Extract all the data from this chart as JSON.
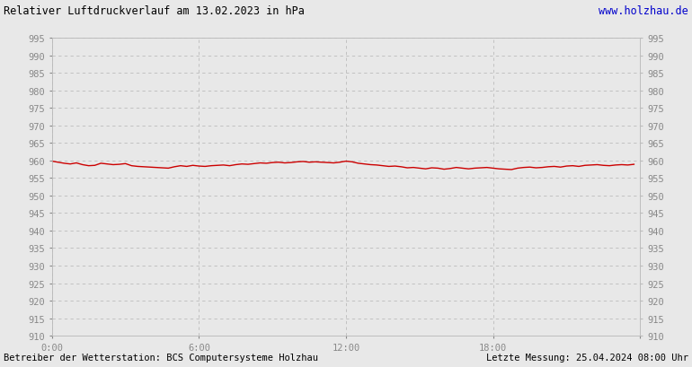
{
  "title_left": "Relativer Luftdruckverlauf am 13.02.2023 in hPa",
  "title_right": "www.holzhau.de",
  "footer_left": "Betreiber der Wetterstation: BCS Computersysteme Holzhau",
  "footer_right": "Letzte Messung: 25.04.2024 08:00 Uhr",
  "background_color": "#e8e8e8",
  "plot_bg_color": "#e8e8e8",
  "grid_color": "#bbbbbb",
  "line_color": "#cc0000",
  "tick_label_color": "#888888",
  "title_color_left": "#000000",
  "title_color_right": "#0000cc",
  "footer_color": "#000000",
  "ylim": [
    910,
    995
  ],
  "ytick_step": 5,
  "xtick_positions": [
    0,
    6,
    12,
    18,
    24
  ],
  "xtick_labels": [
    "0:00",
    "6:00",
    "12:00",
    "18:00",
    ""
  ],
  "xlim": [
    0,
    24
  ],
  "pressure_x": [
    0.0,
    0.25,
    0.5,
    0.75,
    1.0,
    1.25,
    1.5,
    1.75,
    2.0,
    2.25,
    2.5,
    2.75,
    3.0,
    3.25,
    3.5,
    3.75,
    4.0,
    4.25,
    4.5,
    4.75,
    5.0,
    5.25,
    5.5,
    5.75,
    6.0,
    6.25,
    6.5,
    6.75,
    7.0,
    7.25,
    7.5,
    7.75,
    8.0,
    8.25,
    8.5,
    8.75,
    9.0,
    9.25,
    9.5,
    9.75,
    10.0,
    10.25,
    10.5,
    10.75,
    11.0,
    11.25,
    11.5,
    11.75,
    12.0,
    12.25,
    12.5,
    12.75,
    13.0,
    13.25,
    13.5,
    13.75,
    14.0,
    14.25,
    14.5,
    14.75,
    15.0,
    15.25,
    15.5,
    15.75,
    16.0,
    16.25,
    16.5,
    16.75,
    17.0,
    17.25,
    17.5,
    17.75,
    18.0,
    18.25,
    18.5,
    18.75,
    19.0,
    19.25,
    19.5,
    19.75,
    20.0,
    20.25,
    20.5,
    20.75,
    21.0,
    21.25,
    21.5,
    21.75,
    22.0,
    22.25,
    22.5,
    22.75,
    23.0,
    23.25,
    23.5,
    23.75
  ],
  "pressure_y": [
    959.8,
    959.5,
    959.2,
    959.0,
    959.3,
    958.8,
    958.5,
    958.6,
    959.2,
    959.0,
    958.8,
    958.9,
    959.1,
    958.5,
    958.3,
    958.2,
    958.1,
    958.0,
    957.9,
    957.8,
    958.2,
    958.5,
    958.3,
    958.6,
    958.4,
    958.3,
    958.5,
    958.6,
    958.7,
    958.5,
    958.8,
    959.0,
    958.9,
    959.1,
    959.3,
    959.2,
    959.4,
    959.5,
    959.3,
    959.4,
    959.6,
    959.7,
    959.5,
    959.6,
    959.5,
    959.4,
    959.3,
    959.5,
    959.8,
    959.6,
    959.2,
    959.0,
    958.8,
    958.7,
    958.5,
    958.3,
    958.4,
    958.2,
    957.9,
    958.0,
    957.8,
    957.6,
    957.9,
    957.8,
    957.5,
    957.7,
    958.0,
    957.8,
    957.6,
    957.8,
    957.9,
    958.0,
    957.8,
    957.6,
    957.5,
    957.4,
    957.8,
    958.0,
    958.1,
    957.9,
    958.0,
    958.2,
    958.3,
    958.1,
    958.4,
    958.5,
    958.3,
    958.6,
    958.7,
    958.8,
    958.6,
    958.5,
    958.7,
    958.8,
    958.7,
    958.9
  ]
}
